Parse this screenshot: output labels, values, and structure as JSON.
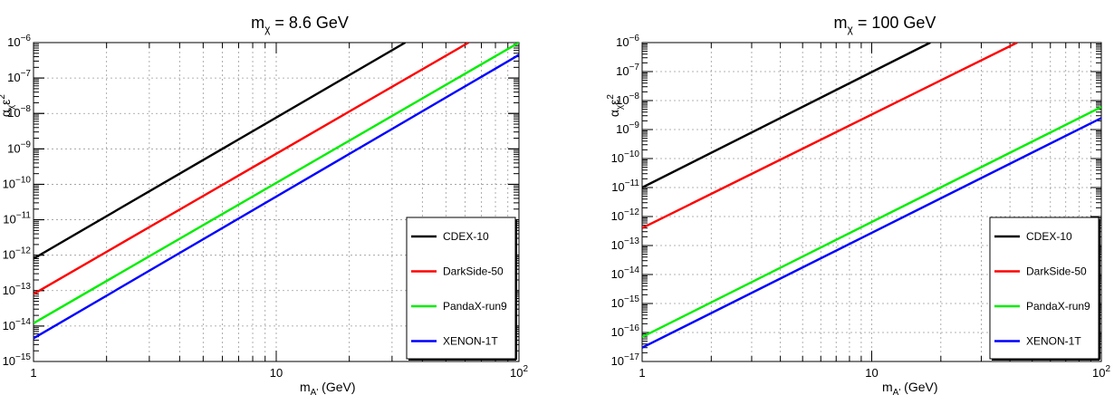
{
  "chart_data": [
    {
      "type": "line",
      "title": "m_χ = 8.6 GeV",
      "title_main": "m",
      "title_sub": "χ",
      "title_rest": " = 8.6 GeV",
      "xlabel": "m_A' (GeV)",
      "ylabel": "α_χ ε^2",
      "xscale": "log",
      "yscale": "log",
      "xlim": [
        1,
        100
      ],
      "ylim": [
        1e-15,
        1e-06
      ],
      "grid": true,
      "legend_position": "bottom-right",
      "x_major_ticks": [
        "1",
        "10",
        "10^2"
      ],
      "y_major_exponents": [
        -15,
        -14,
        -13,
        -12,
        -11,
        -10,
        -9,
        -8,
        -7,
        -6
      ],
      "series": [
        {
          "name": "CDEX-10",
          "color": "#000000",
          "x": [
            1,
            34
          ],
          "y": [
            8e-13,
            1e-06
          ]
        },
        {
          "name": "DarkSide-50",
          "color": "#ff0000",
          "x": [
            1,
            62
          ],
          "y": [
            8e-14,
            1e-06
          ]
        },
        {
          "name": "PandaX-run9",
          "color": "#00ee00",
          "x": [
            1,
            100
          ],
          "y": [
            1.2e-14,
            1e-06
          ]
        },
        {
          "name": "XENON-1T",
          "color": "#0000ff",
          "x": [
            1,
            100
          ],
          "y": [
            4.5e-15,
            4.5e-07
          ]
        }
      ]
    },
    {
      "type": "line",
      "title": "m_χ = 100 GeV",
      "title_main": "m",
      "title_sub": "χ",
      "title_rest": " = 100 GeV",
      "xlabel": "m_A' (GeV)",
      "ylabel": "α_χ ε^2",
      "xscale": "log",
      "yscale": "log",
      "xlim": [
        1,
        100
      ],
      "ylim": [
        1e-17,
        1e-06
      ],
      "grid": true,
      "legend_position": "bottom-right",
      "x_major_ticks": [
        "1",
        "10",
        "10^2"
      ],
      "y_major_exponents": [
        -17,
        -16,
        -15,
        -14,
        -13,
        -12,
        -11,
        -10,
        -9,
        -8,
        -7,
        -6
      ],
      "series": [
        {
          "name": "CDEX-10",
          "color": "#000000",
          "x": [
            1,
            18
          ],
          "y": [
            1e-11,
            1e-06
          ]
        },
        {
          "name": "DarkSide-50",
          "color": "#ff0000",
          "x": [
            1,
            43
          ],
          "y": [
            4e-13,
            1e-06
          ]
        },
        {
          "name": "PandaX-run9",
          "color": "#00ee00",
          "x": [
            1,
            100
          ],
          "y": [
            7e-17,
            6e-09
          ]
        },
        {
          "name": "XENON-1T",
          "color": "#0000ff",
          "x": [
            1,
            100
          ],
          "y": [
            3e-17,
            2.5e-09
          ]
        }
      ]
    }
  ]
}
